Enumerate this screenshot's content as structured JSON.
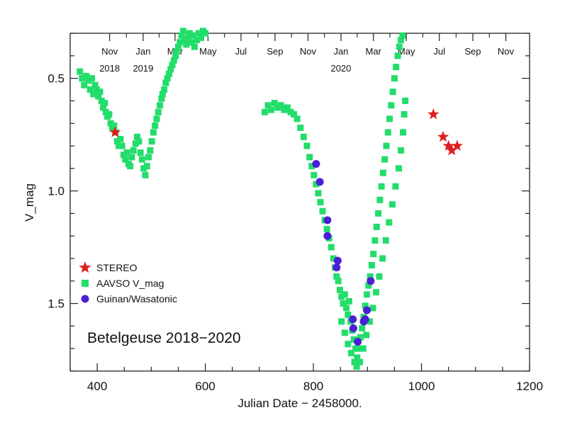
{
  "chart_data": {
    "type": "scatter",
    "title": "",
    "annotation": "Betelgeuse 2018−2020",
    "xlabel": "Julian Date − 2458000.",
    "ylabel": "V_mag",
    "xlim": [
      350,
      1200
    ],
    "ylim": [
      1.8,
      0.3
    ],
    "y_inverted": true,
    "grid": false,
    "legend_position": "left",
    "x_ticks": [
      400,
      600,
      800,
      1000,
      1200
    ],
    "x_tick_labels": [
      "400",
      "600",
      "800",
      "1000",
      "1200"
    ],
    "y_ticks": [
      0.5,
      1.0,
      1.5
    ],
    "y_tick_labels": [
      "0.5",
      "1.0",
      "1.5"
    ],
    "top_axis": {
      "months": [
        {
          "x": 423,
          "label": "Nov"
        },
        {
          "x": 485,
          "label": "Jan"
        },
        {
          "x": 544,
          "label": "Mar"
        },
        {
          "x": 605,
          "label": "May"
        },
        {
          "x": 666,
          "label": "Jul"
        },
        {
          "x": 729,
          "label": "Sep"
        },
        {
          "x": 790,
          "label": "Nov"
        },
        {
          "x": 851,
          "label": "Jan"
        },
        {
          "x": 911,
          "label": "Mar"
        },
        {
          "x": 972,
          "label": "May"
        },
        {
          "x": 1033,
          "label": "Jul"
        },
        {
          "x": 1095,
          "label": "Sep"
        },
        {
          "x": 1156,
          "label": "Nov"
        }
      ],
      "years": [
        {
          "x": 423,
          "label": "2018"
        },
        {
          "x": 485,
          "label": "2019"
        },
        {
          "x": 851,
          "label": "2020"
        }
      ]
    },
    "series": [
      {
        "name": "AAVSO V_mag",
        "marker": "square",
        "color": "#22dd6a",
        "points": [
          [
            368,
            0.47
          ],
          [
            372,
            0.5
          ],
          [
            376,
            0.53
          ],
          [
            380,
            0.49
          ],
          [
            384,
            0.51
          ],
          [
            387,
            0.55
          ],
          [
            390,
            0.5
          ],
          [
            393,
            0.57
          ],
          [
            396,
            0.53
          ],
          [
            399,
            0.55
          ],
          [
            402,
            0.58
          ],
          [
            405,
            0.56
          ],
          [
            408,
            0.6
          ],
          [
            411,
            0.63
          ],
          [
            414,
            0.61
          ],
          [
            416,
            0.65
          ],
          [
            419,
            0.67
          ],
          [
            422,
            0.66
          ],
          [
            425,
            0.7
          ],
          [
            428,
            0.72
          ],
          [
            431,
            0.71
          ],
          [
            434,
            0.74
          ],
          [
            437,
            0.78
          ],
          [
            440,
            0.8
          ],
          [
            443,
            0.77
          ],
          [
            446,
            0.8
          ],
          [
            449,
            0.84
          ],
          [
            452,
            0.86
          ],
          [
            455,
            0.83
          ],
          [
            458,
            0.88
          ],
          [
            461,
            0.89
          ],
          [
            464,
            0.85
          ],
          [
            467,
            0.82
          ],
          [
            471,
            0.79
          ],
          [
            474,
            0.76
          ],
          [
            477,
            0.78
          ],
          [
            480,
            0.83
          ],
          [
            483,
            0.86
          ],
          [
            486,
            0.9
          ],
          [
            489,
            0.93
          ],
          [
            492,
            0.89
          ],
          [
            495,
            0.85
          ],
          [
            498,
            0.82
          ],
          [
            501,
            0.78
          ],
          [
            504,
            0.74
          ],
          [
            507,
            0.71
          ],
          [
            510,
            0.68
          ],
          [
            513,
            0.65
          ],
          [
            516,
            0.62
          ],
          [
            519,
            0.59
          ],
          [
            521,
            0.57
          ],
          [
            524,
            0.55
          ],
          [
            527,
            0.52
          ],
          [
            530,
            0.5
          ],
          [
            533,
            0.48
          ],
          [
            536,
            0.46
          ],
          [
            539,
            0.44
          ],
          [
            542,
            0.42
          ],
          [
            545,
            0.4
          ],
          [
            547,
            0.38
          ],
          [
            550,
            0.36
          ],
          [
            553,
            0.34
          ],
          [
            556,
            0.31
          ],
          [
            559,
            0.29
          ],
          [
            562,
            0.33
          ],
          [
            565,
            0.35
          ],
          [
            568,
            0.32
          ],
          [
            571,
            0.3
          ],
          [
            574,
            0.34
          ],
          [
            577,
            0.31
          ],
          [
            580,
            0.36
          ],
          [
            584,
            0.33
          ],
          [
            588,
            0.3
          ],
          [
            592,
            0.32
          ],
          [
            596,
            0.29
          ],
          [
            600,
            0.3
          ],
          [
            710,
            0.65
          ],
          [
            716,
            0.62
          ],
          [
            722,
            0.64
          ],
          [
            728,
            0.61
          ],
          [
            734,
            0.63
          ],
          [
            740,
            0.62
          ],
          [
            746,
            0.64
          ],
          [
            752,
            0.63
          ],
          [
            758,
            0.65
          ],
          [
            764,
            0.66
          ],
          [
            770,
            0.68
          ],
          [
            776,
            0.72
          ],
          [
            782,
            0.76
          ],
          [
            788,
            0.8
          ],
          [
            793,
            0.85
          ],
          [
            797,
            0.89
          ],
          [
            801,
            0.93
          ],
          [
            805,
            0.97
          ],
          [
            809,
            1.01
          ],
          [
            813,
            1.05
          ],
          [
            817,
            1.09
          ],
          [
            821,
            1.13
          ],
          [
            825,
            1.17
          ],
          [
            829,
            1.21
          ],
          [
            833,
            1.25
          ],
          [
            837,
            1.3
          ],
          [
            840,
            1.34
          ],
          [
            843,
            1.38
          ],
          [
            846,
            1.4
          ],
          [
            849,
            1.44
          ],
          [
            852,
            1.47
          ],
          [
            855,
            1.5
          ],
          [
            858,
            1.46
          ],
          [
            861,
            1.52
          ],
          [
            864,
            1.55
          ],
          [
            866,
            1.49
          ],
          [
            869,
            1.58
          ],
          [
            872,
            1.62
          ],
          [
            875,
            1.66
          ],
          [
            878,
            1.7
          ],
          [
            881,
            1.74
          ],
          [
            884,
            1.7
          ],
          [
            887,
            1.65
          ],
          [
            890,
            1.61
          ],
          [
            893,
            1.56
          ],
          [
            896,
            1.51
          ],
          [
            899,
            1.46
          ],
          [
            902,
            1.42
          ],
          [
            905,
            1.38
          ],
          [
            908,
            1.33
          ],
          [
            911,
            1.28
          ],
          [
            914,
            1.22
          ],
          [
            917,
            1.16
          ],
          [
            920,
            1.1
          ],
          [
            923,
            1.04
          ],
          [
            926,
            0.98
          ],
          [
            929,
            0.92
          ],
          [
            932,
            0.86
          ],
          [
            935,
            0.8
          ],
          [
            938,
            0.74
          ],
          [
            941,
            0.68
          ],
          [
            944,
            0.62
          ],
          [
            947,
            0.56
          ],
          [
            950,
            0.5
          ],
          [
            953,
            0.45
          ],
          [
            956,
            0.4
          ],
          [
            959,
            0.36
          ],
          [
            962,
            0.33
          ],
          [
            965,
            0.31
          ],
          [
            852,
            1.58
          ],
          [
            858,
            1.63
          ],
          [
            864,
            1.68
          ],
          [
            870,
            1.72
          ],
          [
            876,
            1.76
          ],
          [
            880,
            1.78
          ],
          [
            886,
            1.76
          ],
          [
            892,
            1.7
          ],
          [
            898,
            1.64
          ],
          [
            904,
            1.58
          ],
          [
            910,
            1.52
          ],
          [
            916,
            1.45
          ],
          [
            922,
            1.38
          ],
          [
            928,
            1.3
          ],
          [
            934,
            1.22
          ],
          [
            940,
            1.14
          ],
          [
            946,
            1.06
          ],
          [
            952,
            0.98
          ],
          [
            958,
            0.9
          ],
          [
            962,
            0.82
          ],
          [
            966,
            0.74
          ],
          [
            968,
            0.66
          ],
          [
            970,
            0.6
          ]
        ]
      },
      {
        "name": "STEREO",
        "marker": "star",
        "color": "#e01c1c",
        "points": [
          [
            433,
            0.74
          ],
          [
            1022,
            0.66
          ],
          [
            1040,
            0.76
          ],
          [
            1050,
            0.8
          ],
          [
            1056,
            0.82
          ],
          [
            1066,
            0.8
          ]
        ]
      },
      {
        "name": "Guinan/Wasatonic",
        "marker": "circle",
        "color": "#4a1fd6",
        "points": [
          [
            805,
            0.88
          ],
          [
            812,
            0.96
          ],
          [
            826,
            1.13
          ],
          [
            826,
            1.2
          ],
          [
            843,
            1.34
          ],
          [
            845,
            1.31
          ],
          [
            873,
            1.57
          ],
          [
            874,
            1.61
          ],
          [
            882,
            1.67
          ],
          [
            893,
            1.58
          ],
          [
            896,
            1.57
          ],
          [
            899,
            1.53
          ],
          [
            906,
            1.4
          ]
        ]
      }
    ]
  }
}
